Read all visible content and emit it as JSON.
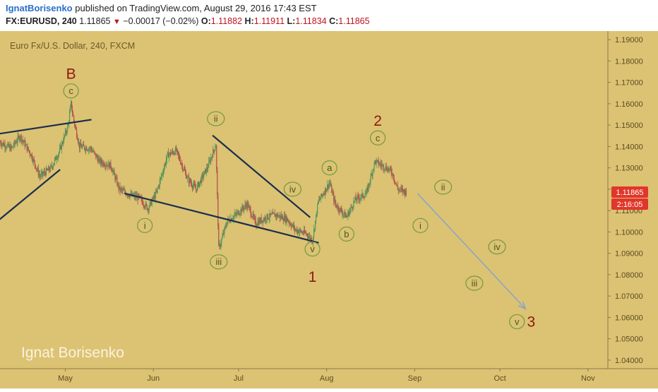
{
  "header": {
    "author": "IgnatBorisenko",
    "published_text": "published on TradingView.com, August 29, 2016 17:43 EST",
    "symbol": "FX:EURUSD, 240",
    "last": "1.11865",
    "change": "−0.00017 (−0.02%)",
    "o_label": "O:",
    "o_value": "1.11882",
    "h_label": "H:",
    "h_value": "1.11911",
    "l_label": "L:",
    "l_value": "1.11834",
    "c_label": "C:",
    "c_value": "1.11865"
  },
  "chart": {
    "legend": "Euro Fx/U.S. Dollar, 240, FXCM",
    "watermark": "Ignat Borisenko",
    "price_tag": "1.11865",
    "countdown_tag": "2:16:05",
    "colors": {
      "background": "#dcc273",
      "axis_bg": "#dcc273",
      "candle_up": "#4d9a5a",
      "candle_down": "#b0524d",
      "trendline": "#1a2f4f",
      "projection_arrow": "#7fa3cf",
      "wave_circle": "#6f9a3d",
      "wave_label_major": "#8a1a10",
      "tag_red": "#e0362b"
    }
  },
  "chart_data": {
    "type": "candlestick",
    "title": "Euro Fx/U.S. Dollar, 240, FXCM",
    "x_ticks": [
      "May",
      "Jun",
      "Jul",
      "Aug",
      "Sep",
      "Oct",
      "Nov"
    ],
    "y_ticks": [
      "1.19000",
      "1.18000",
      "1.17000",
      "1.16000",
      "1.15000",
      "1.14000",
      "1.13000",
      "1.12000",
      "1.11000",
      "1.10000",
      "1.09000",
      "1.08000",
      "1.07000",
      "1.06000",
      "1.05000",
      "1.04000"
    ],
    "ylim": [
      1.036,
      1.194
    ],
    "x_range": [
      "2016-04-08",
      "2016-11-08"
    ],
    "price_path": [
      [
        "2016-04-08",
        1.142
      ],
      [
        "2016-04-12",
        1.139
      ],
      [
        "2016-04-15",
        1.145
      ],
      [
        "2016-04-19",
        1.136
      ],
      [
        "2016-04-22",
        1.126
      ],
      [
        "2016-04-26",
        1.13
      ],
      [
        "2016-04-29",
        1.138
      ],
      [
        "2016-05-02",
        1.15
      ],
      [
        "2016-05-03",
        1.16
      ],
      [
        "2016-05-04",
        1.152
      ],
      [
        "2016-05-06",
        1.14
      ],
      [
        "2016-05-10",
        1.139
      ],
      [
        "2016-05-13",
        1.133
      ],
      [
        "2016-05-17",
        1.131
      ],
      [
        "2016-05-20",
        1.12
      ],
      [
        "2016-05-24",
        1.117
      ],
      [
        "2016-05-27",
        1.116
      ],
      [
        "2016-05-30",
        1.111
      ],
      [
        "2016-06-02",
        1.118
      ],
      [
        "2016-06-06",
        1.136
      ],
      [
        "2016-06-09",
        1.138
      ],
      [
        "2016-06-13",
        1.125
      ],
      [
        "2016-06-16",
        1.12
      ],
      [
        "2016-06-20",
        1.13
      ],
      [
        "2016-06-23",
        1.141
      ],
      [
        "2016-06-24",
        1.092
      ],
      [
        "2016-06-27",
        1.105
      ],
      [
        "2016-06-30",
        1.108
      ],
      [
        "2016-07-04",
        1.113
      ],
      [
        "2016-07-07",
        1.104
      ],
      [
        "2016-07-11",
        1.107
      ],
      [
        "2016-07-14",
        1.108
      ],
      [
        "2016-07-18",
        1.106
      ],
      [
        "2016-07-21",
        1.101
      ],
      [
        "2016-07-25",
        1.099
      ],
      [
        "2016-07-27",
        1.096
      ],
      [
        "2016-07-29",
        1.114
      ],
      [
        "2016-08-02",
        1.123
      ],
      [
        "2016-08-04",
        1.113
      ],
      [
        "2016-08-08",
        1.107
      ],
      [
        "2016-08-11",
        1.115
      ],
      [
        "2016-08-15",
        1.118
      ],
      [
        "2016-08-18",
        1.133
      ],
      [
        "2016-08-22",
        1.13
      ],
      [
        "2016-08-24",
        1.128
      ],
      [
        "2016-08-26",
        1.12
      ],
      [
        "2016-08-29",
        1.1187
      ]
    ],
    "last_price": 1.11865,
    "wave_labels": [
      {
        "text": "B",
        "date": "2016-05-03",
        "price": 1.174,
        "style": "major"
      },
      {
        "text": "c",
        "date": "2016-05-03",
        "price": 1.166,
        "style": "circle"
      },
      {
        "text": "i",
        "date": "2016-05-29",
        "price": 1.103,
        "style": "circle"
      },
      {
        "text": "ii",
        "date": "2016-06-23",
        "price": 1.153,
        "style": "circle"
      },
      {
        "text": "iii",
        "date": "2016-06-24",
        "price": 1.086,
        "style": "circle"
      },
      {
        "text": "iv",
        "date": "2016-07-20",
        "price": 1.12,
        "style": "circle"
      },
      {
        "text": "v",
        "date": "2016-07-27",
        "price": 1.092,
        "style": "circle"
      },
      {
        "text": "1",
        "date": "2016-07-27",
        "price": 1.079,
        "style": "major"
      },
      {
        "text": "a",
        "date": "2016-08-02",
        "price": 1.13,
        "style": "circle"
      },
      {
        "text": "b",
        "date": "2016-08-08",
        "price": 1.099,
        "style": "circle"
      },
      {
        "text": "2",
        "date": "2016-08-19",
        "price": 1.152,
        "style": "major"
      },
      {
        "text": "c",
        "date": "2016-08-19",
        "price": 1.144,
        "style": "circle"
      },
      {
        "text": "ii",
        "date": "2016-09-11",
        "price": 1.121,
        "style": "circle"
      },
      {
        "text": "i",
        "date": "2016-09-03",
        "price": 1.103,
        "style": "circle"
      },
      {
        "text": "iv",
        "date": "2016-09-30",
        "price": 1.093,
        "style": "circle"
      },
      {
        "text": "iii",
        "date": "2016-09-22",
        "price": 1.076,
        "style": "circle"
      },
      {
        "text": "v",
        "date": "2016-10-07",
        "price": 1.058,
        "style": "circle"
      },
      {
        "text": "3",
        "date": "2016-10-12",
        "price": 1.058,
        "style": "major"
      }
    ],
    "trendlines": [
      {
        "from": [
          "2016-04-08",
          1.146
        ],
        "to": [
          "2016-05-10",
          1.1525
        ]
      },
      {
        "from": [
          "2016-04-08",
          1.106
        ],
        "to": [
          "2016-04-29",
          1.129
        ]
      },
      {
        "from": [
          "2016-05-22",
          1.118
        ],
        "to": [
          "2016-07-29",
          1.095
        ]
      },
      {
        "from": [
          "2016-06-22",
          1.145
        ],
        "to": [
          "2016-07-26",
          1.107
        ]
      }
    ],
    "projection_arrow": {
      "from": [
        "2016-09-02",
        1.118
      ],
      "to": [
        "2016-10-10",
        1.064
      ]
    }
  }
}
